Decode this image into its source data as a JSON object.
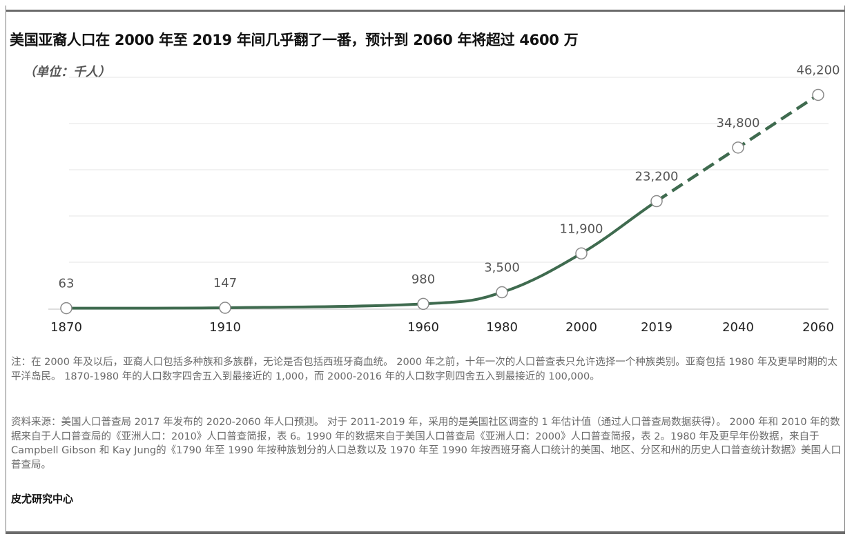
{
  "title": "美国亚裔人口在 2000 年至 2019 年间几乎翻了一番，预计到 2060 年将超过 4600 万",
  "unit": "（单位：千人）",
  "colors": {
    "line": "#3f6b4f",
    "grid": "#e4e4e4",
    "axis": "#bdbdbd",
    "label": "#555555",
    "marker_fill": "#ffffff",
    "marker_stroke": "#8a8a8a"
  },
  "chart_data": {
    "type": "line",
    "x": [
      1870,
      1910,
      1960,
      1980,
      2000,
      2019,
      2040,
      2060
    ],
    "x_tick_labels": [
      "1870",
      "1910",
      "1960",
      "1980",
      "2000",
      "2019",
      "2040",
      "2060"
    ],
    "data_labels": [
      "63",
      "147",
      "980",
      "3,500",
      "11,900",
      "23,200",
      "34,800",
      "46,200"
    ],
    "series": [
      {
        "values": [
          63,
          147,
          980,
          3500,
          11900,
          23200,
          34800,
          46200
        ],
        "projected_from_index": 5
      }
    ],
    "ylim": [
      0,
      50000
    ],
    "grid": true,
    "legend": "none",
    "xlabel": "",
    "ylabel": ""
  },
  "notes": {
    "note": "注：在 2000 年及以后，亚裔人口包括多种族和多族群，无论是否包括西班牙裔血统。 2000 年之前，十年一次的人口普查表只允许选择一个种族类别。亚裔包括 1980 年及更早时期的太平洋岛民。 1870-1980 年的人口数字四舍五入到最接近的 1,000，而 2000-2016 年的人口数字则四舍五入到最接近的 100,000。",
    "source": "资料来源：美国人口普查局 2017 年发布的 2020-2060 年人口预测。 对于 2011-2019 年，采用的是美国社区调查的 1 年估计值（通过人口普查局数据获得）。 2000 年和 2010 年的数据来自于人口普查局的《亚洲人口：2010》人口普查简报，表 6。1990 年的数据来自于美国人口普查局《亚洲人口：2000》人口普查简报，表 2。1980 年及更早年份数据，来自于Campbell Gibson 和 Kay Jung的《1790 年至 1990 年按种族划分的人口总数以及 1970 年至 1990 年按西班牙裔人口统计的美国、地区、分区和州的历史人口普查统计数据》美国人口普查局。"
  },
  "credit": "皮尤研究中心"
}
